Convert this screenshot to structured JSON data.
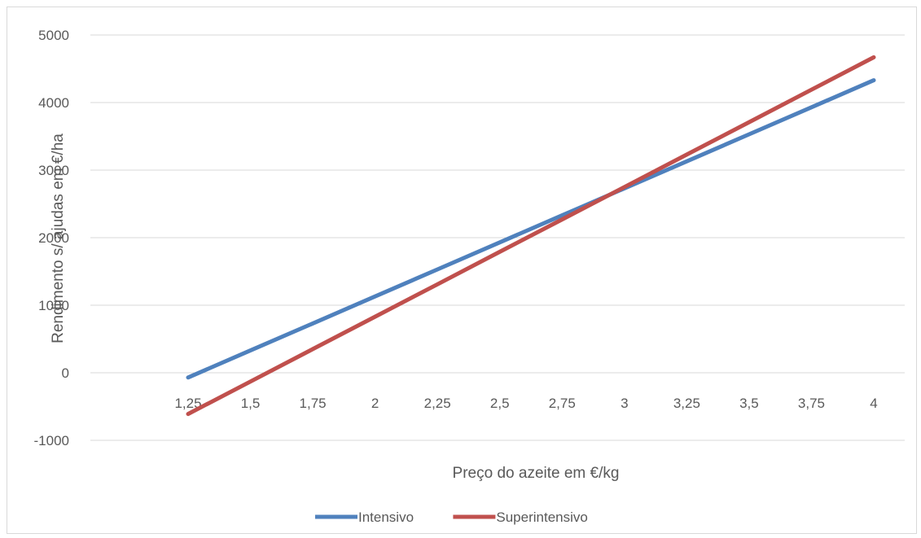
{
  "chart_data": {
    "type": "line",
    "title": "",
    "xlabel": "Preço do azeite em €/kg",
    "ylabel": "Rendimento s/ ajudas em €/ha",
    "categories": [
      "1,25",
      "1,5",
      "1,75",
      "2",
      "2,25",
      "2,5",
      "2,75",
      "3",
      "3,25",
      "3,5",
      "3,75",
      "4"
    ],
    "y_ticks": [
      -1000,
      0,
      1000,
      2000,
      3000,
      4000,
      5000
    ],
    "y_tick_labels": [
      "-1000",
      "0",
      "1000",
      "2000",
      "3000",
      "4000",
      "5000"
    ],
    "ylim": [
      -1000,
      5000
    ],
    "grid": true,
    "legend_position": "bottom",
    "series": [
      {
        "name": "Intensivo",
        "color": "#4f81bd",
        "values": [
          -70,
          330,
          730,
          1130,
          1530,
          1930,
          2330,
          2730,
          3130,
          3530,
          3930,
          4330
        ]
      },
      {
        "name": "Superintensivo",
        "color": "#c0504d",
        "values": [
          -610,
          -130,
          350,
          830,
          1310,
          1790,
          2270,
          2750,
          3230,
          3710,
          4190,
          4670
        ]
      }
    ]
  }
}
